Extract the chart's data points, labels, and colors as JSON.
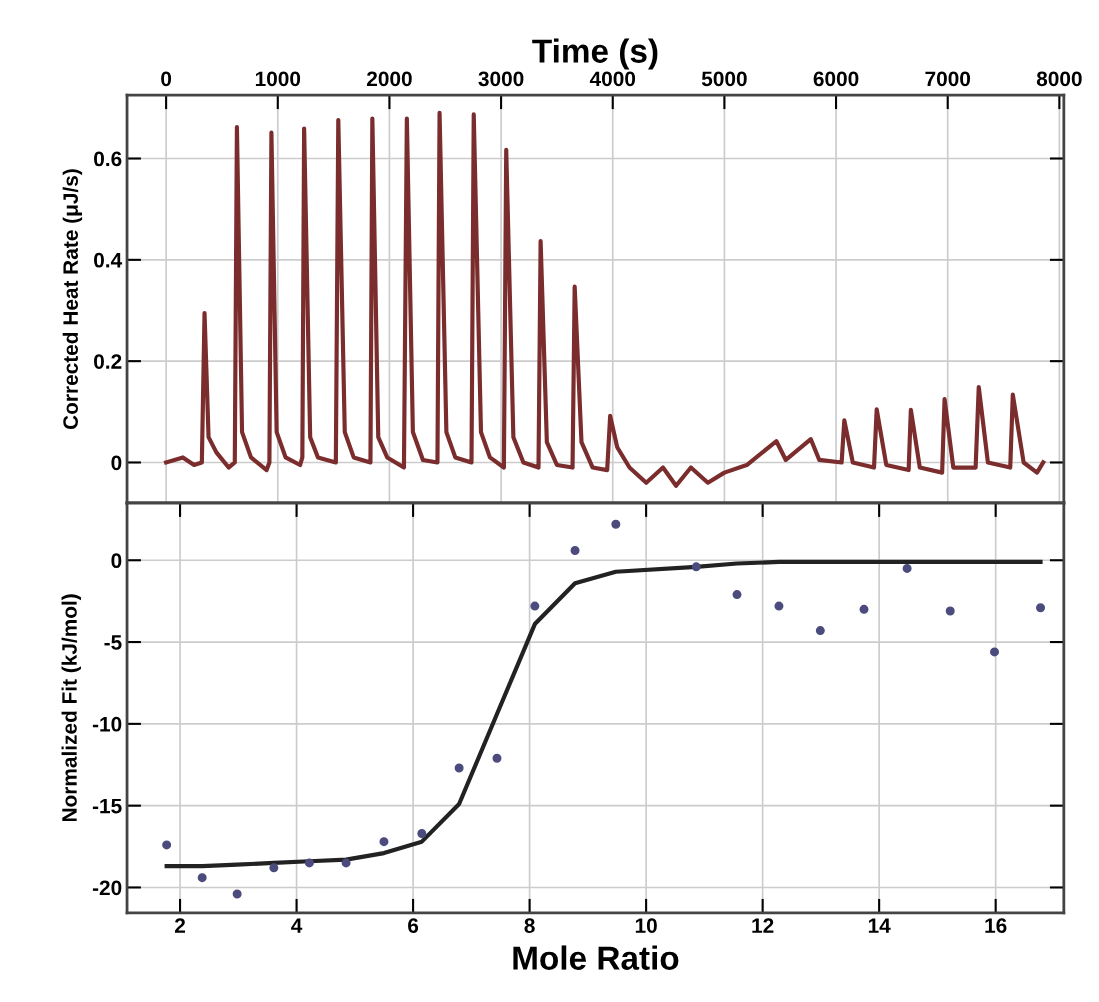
{
  "chart_data": [
    {
      "type": "line",
      "xlabel": "Time (s)",
      "ylabel": "Corrected Heat Rate (μJ/s)",
      "xlim": [
        -350,
        8040
      ],
      "xticks": [
        0,
        1000,
        2000,
        3000,
        4000,
        5000,
        6000,
        7000,
        8000
      ],
      "ylim": [
        -0.08,
        0.725
      ],
      "yticks": [
        0,
        0.2,
        0.4,
        0.6
      ],
      "grid": true,
      "marker": "none",
      "line_style": "solid",
      "series": [
        {
          "color": "#7b2d2d",
          "x": [
            0,
            150,
            250,
            320,
            344,
            380,
            450,
            560,
            615,
            634,
            680,
            760,
            900,
            925,
            943,
            990,
            1070,
            1200,
            1220,
            1236,
            1290,
            1360,
            1520,
            1542,
            1600,
            1680,
            1830,
            1847,
            1900,
            1980,
            2130,
            2156,
            2210,
            2300,
            2430,
            2449,
            2510,
            2590,
            2735,
            2755,
            2820,
            2900,
            3025,
            3046,
            3110,
            3200,
            3335,
            3354,
            3410,
            3500,
            3640,
            3659,
            3720,
            3820,
            3950,
            3977,
            4040,
            4150,
            4300,
            4450,
            4567,
            4700,
            4852,
            5000,
            5200,
            5466,
            5550,
            5774,
            5850,
            6050,
            6074,
            6150,
            6340,
            6364,
            6450,
            6650,
            6670,
            6750,
            6950,
            6972,
            7050,
            7250,
            7278,
            7360,
            7560,
            7583,
            7680,
            7800,
            7855
          ],
          "values": [
            0.0,
            0.01,
            -0.005,
            0.0,
            0.295,
            0.05,
            0.02,
            -0.01,
            0.0,
            0.662,
            0.06,
            0.01,
            -0.015,
            0.0,
            0.651,
            0.06,
            0.01,
            -0.005,
            0.01,
            0.659,
            0.05,
            0.01,
            0.0,
            0.676,
            0.06,
            0.01,
            0.0,
            0.679,
            0.05,
            0.01,
            -0.01,
            0.679,
            0.06,
            0.005,
            0.0,
            0.69,
            0.06,
            0.01,
            0.0,
            0.687,
            0.06,
            0.01,
            -0.01,
            0.617,
            0.05,
            0.0,
            -0.01,
            0.437,
            0.04,
            -0.005,
            -0.01,
            0.347,
            0.04,
            -0.01,
            -0.015,
            0.092,
            0.03,
            -0.01,
            -0.04,
            -0.01,
            -0.046,
            -0.01,
            -0.04,
            -0.02,
            -0.005,
            0.042,
            0.005,
            0.046,
            0.005,
            0.0,
            0.083,
            0.0,
            -0.01,
            0.105,
            -0.005,
            -0.015,
            0.104,
            -0.01,
            -0.02,
            0.125,
            -0.01,
            -0.01,
            0.149,
            0.0,
            -0.01,
            0.134,
            0.0,
            -0.02,
            0.0
          ]
        }
      ]
    },
    {
      "type": "scatter",
      "xlabel": "Mole Ratio",
      "ylabel": "Normalized Fit (kJ/mol)",
      "xlim": [
        1.09,
        17.17
      ],
      "xticks": [
        2,
        4,
        6,
        8,
        10,
        12,
        14,
        16
      ],
      "ylim": [
        -21.55,
        3.5
      ],
      "yticks": [
        {
          "value": 0,
          "label": "0"
        },
        {
          "value": -5,
          "label": "-5"
        },
        {
          "value": -10,
          "label": "-10"
        },
        {
          "value": -15,
          "label": "-15"
        },
        {
          "value": -20,
          "label": "-20"
        }
      ],
      "grid": true,
      "series": [
        {
          "type": "scatter",
          "marker": "circle",
          "color": "#4b4b7d",
          "x": [
            1.77,
            2.38,
            2.98,
            3.61,
            4.22,
            4.85,
            5.5,
            6.15,
            6.79,
            7.44,
            8.09,
            8.78,
            9.48,
            10.86,
            11.56,
            12.28,
            12.99,
            13.74,
            14.48,
            15.22,
            15.98,
            16.77
          ],
          "values": [
            -17.4,
            -19.4,
            -20.4,
            -18.8,
            -18.5,
            -18.5,
            -17.2,
            -16.7,
            -12.7,
            -12.1,
            -2.8,
            0.6,
            2.2,
            -0.4,
            -2.1,
            -2.8,
            -4.3,
            -3.0,
            -0.5,
            -3.1,
            -5.6,
            -2.9
          ]
        },
        {
          "type": "line",
          "marker": "none",
          "color": "#222222",
          "line_style": "solid",
          "x": [
            1.77,
            2.38,
            2.98,
            3.61,
            4.22,
            4.85,
            5.5,
            6.15,
            6.79,
            7.44,
            8.09,
            8.78,
            9.48,
            10.86,
            11.56,
            12.28,
            12.99,
            13.74,
            14.48,
            15.22,
            15.98,
            16.77
          ],
          "values": [
            -18.7,
            -18.7,
            -18.6,
            -18.5,
            -18.4,
            -18.3,
            -17.9,
            -17.2,
            -14.9,
            -9.4,
            -3.9,
            -1.4,
            -0.7,
            -0.4,
            -0.2,
            -0.1,
            -0.1,
            -0.1,
            -0.1,
            -0.1,
            -0.1,
            -0.1
          ]
        }
      ]
    }
  ]
}
